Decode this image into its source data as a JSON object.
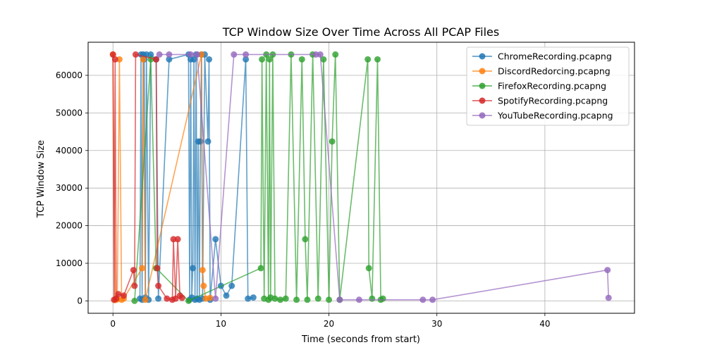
{
  "chart_data": {
    "type": "line",
    "title": "TCP Window Size Over Time Across All PCAP Files",
    "xlabel": "Time (seconds from start)",
    "ylabel": "TCP Window Size",
    "xlim": [
      -2.3,
      48.3
    ],
    "ylim": [
      -3300,
      68800
    ],
    "xticks": [
      0,
      10,
      20,
      30,
      40
    ],
    "yticks": [
      0,
      10000,
      20000,
      30000,
      40000,
      50000,
      60000
    ],
    "ytick_labels": [
      "0",
      "10000",
      "20000",
      "30000",
      "40000",
      "50000",
      "60000"
    ],
    "grid": true,
    "legend_position": "top-right",
    "series": [
      {
        "name": "ChromeRecording.pcapng",
        "color": "#1f77b4",
        "x": [
          2.5,
          2.6,
          2.7,
          2.8,
          2.9,
          3.0,
          3.1,
          3.3,
          3.5,
          4.0,
          4.2,
          5.2,
          7.0,
          7.1,
          7.2,
          7.3,
          7.4,
          7.5,
          7.6,
          7.7,
          7.8,
          7.9,
          8.0,
          8.1,
          8.2,
          8.3,
          8.5,
          8.8,
          8.9,
          9.0,
          9.5,
          10.0,
          10.5,
          11.0,
          12.3,
          12.5,
          13.0
        ],
        "y": [
          600,
          65535,
          300,
          65535,
          64240,
          900,
          65535,
          300,
          65535,
          64240,
          600,
          64240,
          65535,
          300,
          64240,
          900,
          8700,
          64240,
          300,
          65535,
          600,
          42400,
          300,
          42400,
          65535,
          600,
          65535,
          42400,
          64240,
          300,
          16400,
          4000,
          1400,
          4000,
          64240,
          600,
          900
        ]
      },
      {
        "name": "DiscordRedorcing.pcapng",
        "color": "#ff7f0e",
        "x": [
          0.0,
          0.2,
          0.4,
          0.6,
          0.8,
          1.0,
          2.7,
          2.8,
          3.0,
          8.2,
          8.3,
          8.4,
          8.6,
          9.0
        ],
        "y": [
          65535,
          200,
          400,
          64240,
          300,
          600,
          8700,
          64240,
          300,
          65535,
          8200,
          4000,
          600,
          800
        ]
      },
      {
        "name": "FirefoxRecording.pcapng",
        "color": "#2ca02c",
        "x": [
          2.0,
          3.5,
          4.0,
          7.0,
          13.7,
          13.8,
          14.0,
          14.2,
          14.4,
          14.5,
          14.6,
          14.8,
          15.0,
          15.5,
          16.0,
          16.5,
          17.0,
          17.5,
          17.8,
          18.0,
          18.5,
          19.0,
          19.5,
          20.0,
          20.3,
          20.6,
          21.0,
          23.6,
          23.7,
          24.0,
          24.5,
          24.8,
          25.0
        ],
        "y": [
          0,
          64240,
          8700,
          0,
          8700,
          64240,
          600,
          65535,
          300,
          64240,
          900,
          65535,
          600,
          300,
          600,
          65535,
          300,
          64240,
          16400,
          300,
          65535,
          600,
          64240,
          300,
          42400,
          65535,
          300,
          64240,
          8700,
          600,
          64240,
          300,
          600
        ]
      },
      {
        "name": "SpotifyRecording.pcapng",
        "color": "#d62728",
        "x": [
          0.0,
          0.1,
          0.2,
          0.3,
          0.5,
          1.0,
          1.9,
          2.0,
          2.1,
          4.0,
          4.1,
          4.2,
          5.0,
          5.5,
          5.6,
          5.8,
          6.0,
          6.2,
          6.4
        ],
        "y": [
          65535,
          300,
          64240,
          600,
          1800,
          1400,
          8200,
          4000,
          65535,
          64240,
          8700,
          4000,
          600,
          300,
          16400,
          600,
          16400,
          1400,
          800
        ]
      },
      {
        "name": "YouTubeRecording.pcapng",
        "color": "#9467bd",
        "x": [
          4.3,
          5.2,
          7.2,
          7.8,
          9.5,
          11.2,
          12.3,
          18.8,
          19.2,
          21.0,
          22.8,
          28.7,
          29.6,
          45.8,
          45.9
        ],
        "y": [
          65535,
          65535,
          65535,
          65535,
          600,
          65535,
          65535,
          65535,
          65535,
          300,
          300,
          300,
          300,
          8200,
          800
        ]
      }
    ]
  }
}
